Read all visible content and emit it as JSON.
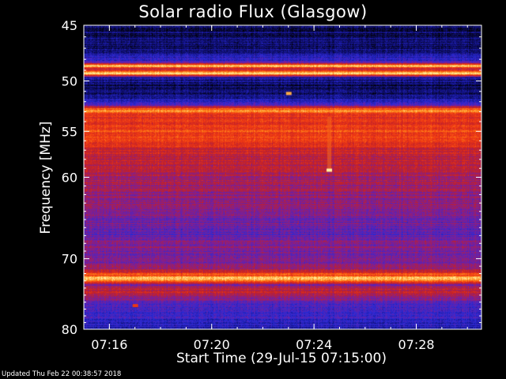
{
  "chart_data": {
    "type": "heatmap",
    "title": "Solar radio Flux (Glasgow)",
    "xlabel": "Start Time (29-Jul-15 07:15:00)",
    "ylabel": "Frequency [MHz]",
    "y_scale": "log",
    "y_inverted": true,
    "ylim": [
      45,
      80
    ],
    "xlim": [
      "07:15:00",
      "07:30:33"
    ],
    "x_ticks": [
      "07:16",
      "07:20",
      "07:24",
      "07:28"
    ],
    "y_ticks": [
      45,
      50,
      55,
      60,
      70,
      80
    ],
    "colormap": [
      "#000000",
      "#10107a",
      "#2a2ad6",
      "#7a1f9c",
      "#c0202a",
      "#f23a12",
      "#ff8c1a",
      "#fff2a0"
    ],
    "frequency_profile_mhz": [
      {
        "f": 45.0,
        "level": 0.12
      },
      {
        "f": 46.0,
        "level": 0.12
      },
      {
        "f": 47.0,
        "level": 0.14
      },
      {
        "f": 48.2,
        "level": 0.3
      },
      {
        "f": 48.6,
        "level": 0.98
      },
      {
        "f": 48.9,
        "level": 0.55
      },
      {
        "f": 49.3,
        "level": 0.98
      },
      {
        "f": 49.7,
        "level": 0.18
      },
      {
        "f": 50.5,
        "level": 0.1
      },
      {
        "f": 51.5,
        "level": 0.16
      },
      {
        "f": 52.3,
        "level": 0.3
      },
      {
        "f": 52.8,
        "level": 0.85
      },
      {
        "f": 53.5,
        "level": 0.62
      },
      {
        "f": 55.0,
        "level": 0.72
      },
      {
        "f": 57.0,
        "level": 0.6
      },
      {
        "f": 59.0,
        "level": 0.55
      },
      {
        "f": 61.0,
        "level": 0.5
      },
      {
        "f": 63.0,
        "level": 0.46
      },
      {
        "f": 65.0,
        "level": 0.4
      },
      {
        "f": 67.0,
        "level": 0.38
      },
      {
        "f": 68.5,
        "level": 0.45
      },
      {
        "f": 70.0,
        "level": 0.4
      },
      {
        "f": 71.5,
        "level": 0.52
      },
      {
        "f": 72.8,
        "level": 0.99
      },
      {
        "f": 73.5,
        "level": 0.45
      },
      {
        "f": 74.5,
        "level": 0.6
      },
      {
        "f": 76.0,
        "level": 0.38
      },
      {
        "f": 78.0,
        "level": 0.3
      },
      {
        "f": 80.0,
        "level": 0.22
      }
    ],
    "events": [
      {
        "time": "07:24:35",
        "f_start": 53.5,
        "f_end": 59.2,
        "level": 0.8
      },
      {
        "time": "07:24:35",
        "f": 59.2,
        "level": 1.0
      },
      {
        "time": "07:23:00",
        "f": 51.2,
        "level": 0.9
      },
      {
        "time": "07:17:00",
        "f": 76.5,
        "level": 0.7
      }
    ]
  },
  "footer": "Updated Thu Feb 22 00:38:57 2018"
}
